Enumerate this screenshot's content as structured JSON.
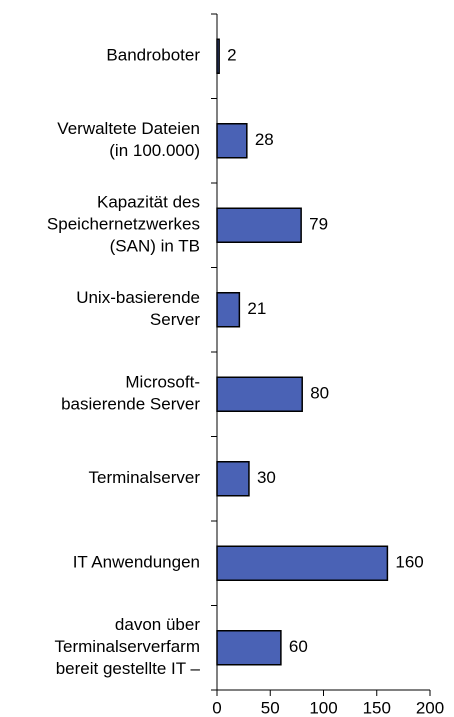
{
  "chart_data": {
    "type": "barh",
    "categories": [
      "Bandroboter",
      "Verwaltete Dateien\n(in 100.000)",
      "Kapazität des\nSpeichernetzwerkes\n(SAN) in TB",
      "Unix-basierende\nServer",
      "Microsoft-\nbasierende Server",
      "Terminalserver",
      "IT Anwendungen",
      "davon über\nTerminalserverfarm\nbereit gestellte IT –"
    ],
    "values": [
      2,
      28,
      79,
      21,
      80,
      30,
      160,
      60
    ],
    "color": "#4a62b5",
    "xlim": [
      0,
      200
    ],
    "xticks": [
      0,
      50,
      100,
      150,
      200
    ]
  }
}
